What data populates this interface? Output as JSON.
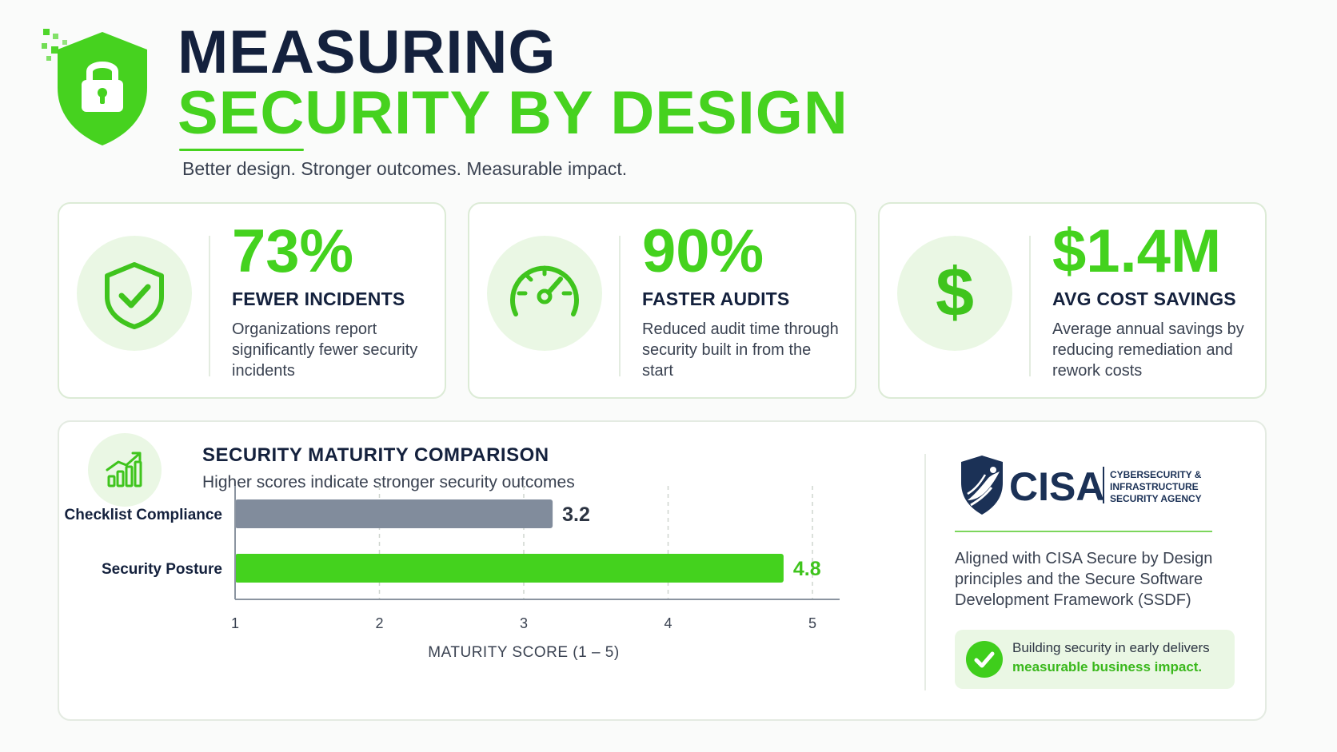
{
  "header": {
    "title_line1": "MEASURING",
    "title_line2": "SECURITY BY DESIGN",
    "subtitle": "Better design. Stronger outcomes. Measurable impact.",
    "icon": "shield-lock-icon"
  },
  "stats": [
    {
      "value": "73%",
      "label": "FEWER INCIDENTS",
      "desc": "Organizations report significantly fewer security incidents",
      "icon": "shield-check-icon"
    },
    {
      "value": "90%",
      "label": "FASTER AUDITS",
      "desc": "Reduced audit time through security built in from the start",
      "icon": "speedometer-icon"
    },
    {
      "value": "$1.4M",
      "label": "AVG COST SAVINGS",
      "desc": "Average annual savings by reducing remediation and rework costs",
      "icon": "dollar-icon"
    }
  ],
  "chart_data": {
    "type": "bar",
    "orientation": "horizontal",
    "title": "SECURITY MATURITY COMPARISON",
    "subtitle": "Higher scores indicate stronger security outcomes",
    "categories": [
      "Checklist Compliance",
      "Security Posture"
    ],
    "values": [
      3.2,
      4.8
    ],
    "value_labels": [
      "3.2",
      "4.8"
    ],
    "bar_colors": [
      "#818c9c",
      "#44d21e"
    ],
    "xlabel": "MATURITY SCORE (1 – 5)",
    "xlim": [
      1,
      5
    ],
    "xticks": [
      "1",
      "2",
      "3",
      "4",
      "5"
    ],
    "grid": "vertical dashed",
    "icon": "growth-chart-icon"
  },
  "sidebar": {
    "logo_wordmark": "CISA",
    "logo_subtext_1": "CYBERSECURITY &",
    "logo_subtext_2": "INFRASTRUCTURE",
    "logo_subtext_3": "SECURITY AGENCY",
    "text": "Aligned with CISA Secure by Design principles and the Secure Software Development Framework (SSDF)",
    "callout_line1": "Building security in early delivers",
    "callout_line2": "measurable business impact.",
    "callout_icon": "check-circle-icon"
  },
  "colors": {
    "accent": "#44d21e",
    "navy": "#14213d",
    "gray_bar": "#818c9c",
    "tint": "#eaf7e4"
  }
}
